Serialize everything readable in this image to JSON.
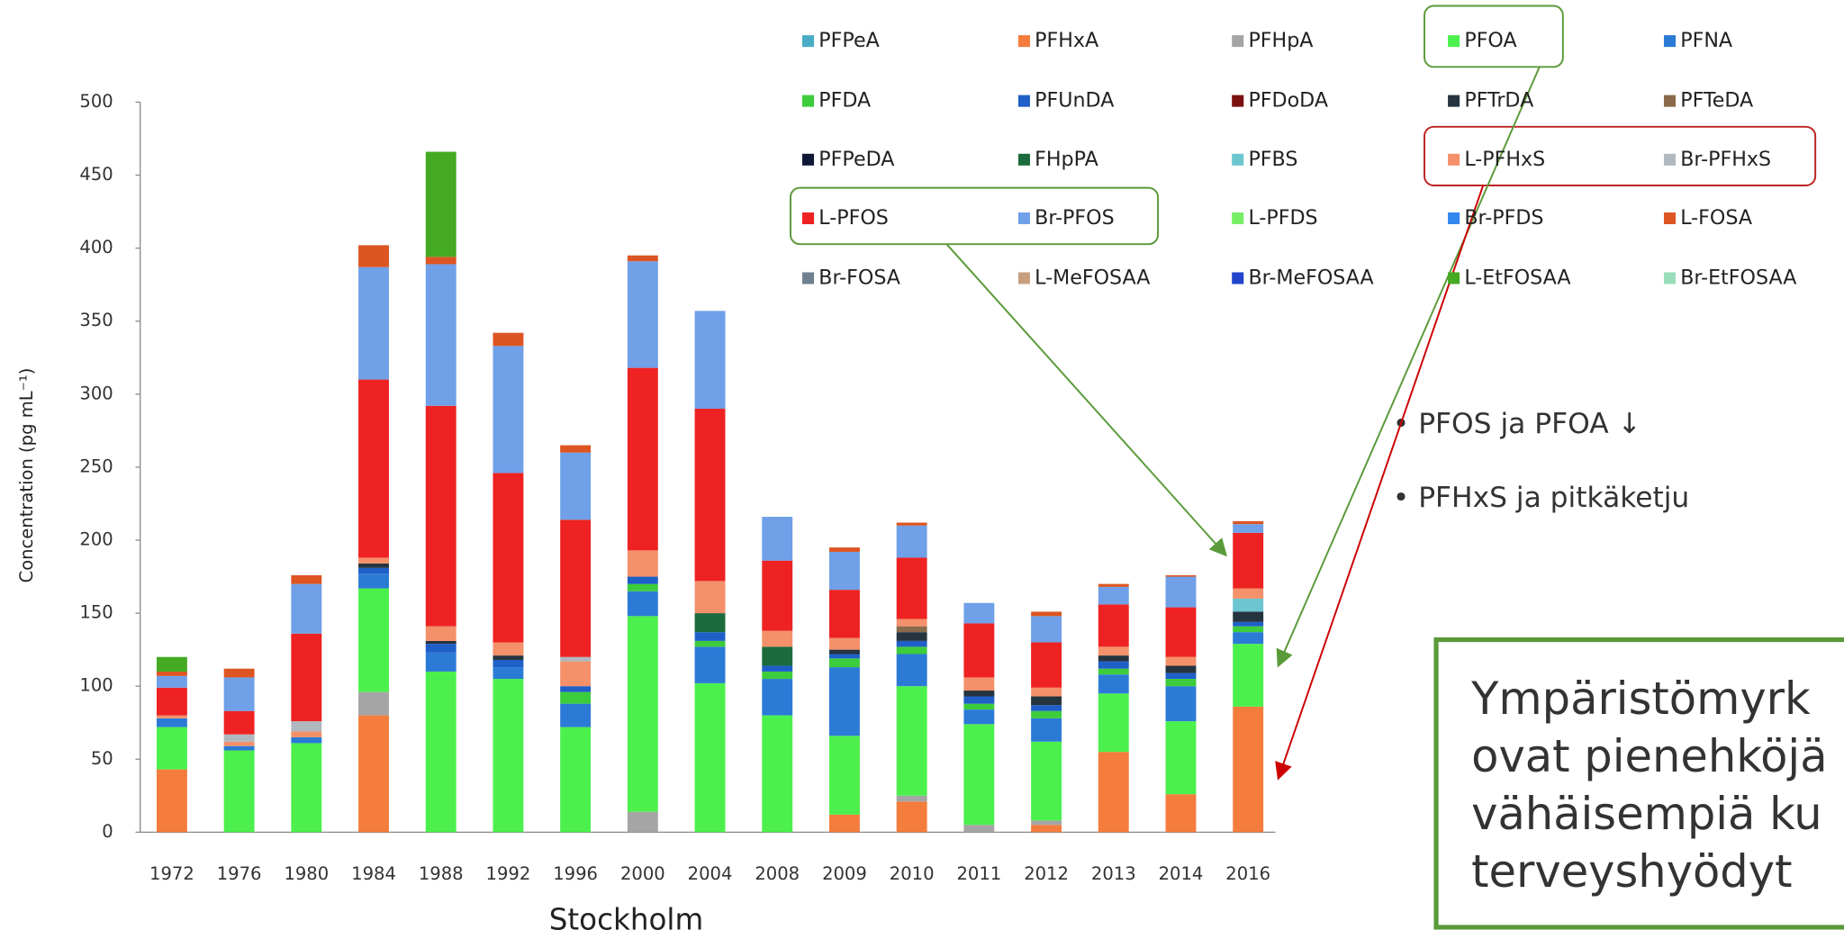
{
  "chart_data": {
    "type": "stacked_bar",
    "y_label": "Concentration (pg mL⁻¹)",
    "x_label": "Stockholm",
    "categories": [
      "1972",
      "1976",
      "1980",
      "1984",
      "1988",
      "1992",
      "1996",
      "2000",
      "2004",
      "2008",
      "2009",
      "2010",
      "2011",
      "2012",
      "2013",
      "2014",
      "2016"
    ],
    "ylim": [
      0,
      500
    ],
    "yticks": [
      0,
      50,
      100,
      150,
      200,
      250,
      300,
      350,
      400,
      450,
      500
    ],
    "grid": false,
    "series": [
      {
        "name": "PFPeA",
        "color": "#4bacc6",
        "values": [
          0,
          0,
          0,
          0,
          0,
          0,
          0,
          0,
          0,
          0,
          0,
          0,
          0,
          0,
          0,
          0,
          0
        ]
      },
      {
        "name": "PFHxA",
        "color": "#f47c3c",
        "values": [
          43,
          0,
          0,
          80,
          0,
          0,
          0,
          0,
          0,
          0,
          12,
          21,
          0,
          5,
          55,
          26,
          86
        ]
      },
      {
        "name": "PFHpA",
        "color": "#a5a5a5",
        "values": [
          0,
          0,
          0,
          16,
          0,
          0,
          0,
          14,
          0,
          0,
          0,
          4,
          5,
          3,
          0,
          0,
          0
        ]
      },
      {
        "name": "PFOA",
        "color": "#4cf04c",
        "values": [
          29,
          56,
          61,
          71,
          110,
          105,
          72,
          134,
          102,
          80,
          54,
          75,
          69,
          54,
          40,
          50,
          43
        ]
      },
      {
        "name": "PFNA",
        "color": "#2b7bd6",
        "values": [
          6,
          3,
          4,
          10,
          13,
          8,
          16,
          17,
          25,
          25,
          47,
          22,
          10,
          16,
          13,
          24,
          8
        ]
      },
      {
        "name": "PFDA",
        "color": "#3ccc3c",
        "values": [
          0,
          0,
          0,
          0,
          0,
          0,
          8,
          5,
          4,
          5,
          6,
          5,
          4,
          5,
          4,
          5,
          4
        ]
      },
      {
        "name": "PFUnDA",
        "color": "#1f5fc8",
        "values": [
          0,
          0,
          0,
          4,
          6,
          5,
          4,
          5,
          6,
          4,
          3,
          4,
          5,
          4,
          5,
          4,
          3
        ]
      },
      {
        "name": "PFDoDA",
        "color": "#7a1010",
        "values": [
          0,
          0,
          0,
          0,
          0,
          0,
          0,
          0,
          0,
          0,
          0,
          0,
          0,
          0,
          0,
          0,
          0
        ]
      },
      {
        "name": "PFTrDA",
        "color": "#25343f",
        "values": [
          0,
          0,
          0,
          3,
          2,
          3,
          0,
          0,
          0,
          0,
          3,
          6,
          4,
          6,
          4,
          5,
          7
        ]
      },
      {
        "name": "PFTeDA",
        "color": "#8a6a4a",
        "values": [
          0,
          0,
          0,
          0,
          0,
          0,
          0,
          0,
          0,
          0,
          0,
          4,
          0,
          0,
          0,
          0,
          0
        ]
      },
      {
        "name": "PFPeDA",
        "color": "#101838",
        "values": [
          0,
          0,
          0,
          0,
          0,
          0,
          0,
          0,
          0,
          0,
          0,
          0,
          0,
          0,
          0,
          0,
          0
        ]
      },
      {
        "name": "FHpPA",
        "color": "#1c6b3c",
        "values": [
          0,
          0,
          0,
          0,
          0,
          0,
          0,
          0,
          13,
          13,
          0,
          0,
          0,
          0,
          0,
          0,
          0
        ]
      },
      {
        "name": "PFBS",
        "color": "#6dc5d0",
        "values": [
          0,
          0,
          0,
          0,
          0,
          0,
          0,
          0,
          0,
          0,
          0,
          0,
          0,
          0,
          0,
          0,
          9
        ]
      },
      {
        "name": "L-PFHxS",
        "color": "#f4906a",
        "values": [
          2,
          3,
          4,
          4,
          10,
          9,
          17,
          18,
          22,
          11,
          8,
          5,
          9,
          6,
          6,
          6,
          7
        ]
      },
      {
        "name": "Br-PFHxS",
        "color": "#b0b8c0",
        "values": [
          0,
          5,
          7,
          0,
          0,
          0,
          3,
          0,
          0,
          0,
          0,
          0,
          0,
          0,
          0,
          0,
          0
        ]
      },
      {
        "name": "L-PFOS",
        "color": "#ee2222",
        "values": [
          19,
          16,
          60,
          122,
          151,
          116,
          94,
          125,
          118,
          48,
          33,
          42,
          37,
          31,
          29,
          34,
          38
        ]
      },
      {
        "name": "Br-PFOS",
        "color": "#6fa0e8",
        "values": [
          8,
          23,
          34,
          77,
          97,
          87,
          46,
          73,
          67,
          30,
          26,
          22,
          14,
          18,
          12,
          21,
          6
        ]
      },
      {
        "name": "L-PFDS",
        "color": "#77ee66",
        "values": [
          0,
          0,
          0,
          0,
          0,
          0,
          0,
          0,
          0,
          0,
          0,
          0,
          0,
          0,
          0,
          0,
          0
        ]
      },
      {
        "name": "Br-PFDS",
        "color": "#3388ee",
        "values": [
          0,
          0,
          0,
          0,
          0,
          0,
          0,
          0,
          0,
          0,
          0,
          0,
          0,
          0,
          0,
          0,
          0
        ]
      },
      {
        "name": "L-FOSA",
        "color": "#dd5522",
        "values": [
          3,
          6,
          6,
          15,
          5,
          9,
          5,
          4,
          0,
          0,
          3,
          2,
          0,
          3,
          2,
          1,
          2
        ]
      },
      {
        "name": "Br-FOSA",
        "color": "#708090",
        "values": [
          0,
          0,
          0,
          0,
          0,
          0,
          0,
          0,
          0,
          0,
          0,
          0,
          0,
          0,
          0,
          0,
          0
        ]
      },
      {
        "name": "L-MeFOSAA",
        "color": "#c8a080",
        "values": [
          0,
          0,
          0,
          0,
          0,
          0,
          0,
          0,
          0,
          0,
          0,
          0,
          0,
          0,
          0,
          0,
          0
        ]
      },
      {
        "name": "Br-MeFOSAA",
        "color": "#2244cc",
        "values": [
          0,
          0,
          0,
          0,
          0,
          0,
          0,
          0,
          0,
          0,
          0,
          0,
          0,
          0,
          0,
          0,
          0
        ]
      },
      {
        "name": "L-EtFOSAA",
        "color": "#44aa22",
        "values": [
          10,
          0,
          0,
          0,
          72,
          0,
          0,
          0,
          0,
          0,
          0,
          0,
          0,
          0,
          0,
          0,
          0
        ]
      },
      {
        "name": "Br-EtFOSAA",
        "color": "#99ddbb",
        "values": [
          0,
          0,
          0,
          0,
          0,
          0,
          0,
          0,
          0,
          0,
          0,
          0,
          0,
          0,
          0,
          0,
          0
        ]
      }
    ]
  },
  "notes": [
    "• PFOS ja PFOA ↓",
    "• PFHxS ja pitkäketju"
  ],
  "callout": [
    "Ympäristömyrk",
    "ovat pienehköjä",
    "vähäisempiä ku",
    "terveyshyödyt"
  ]
}
